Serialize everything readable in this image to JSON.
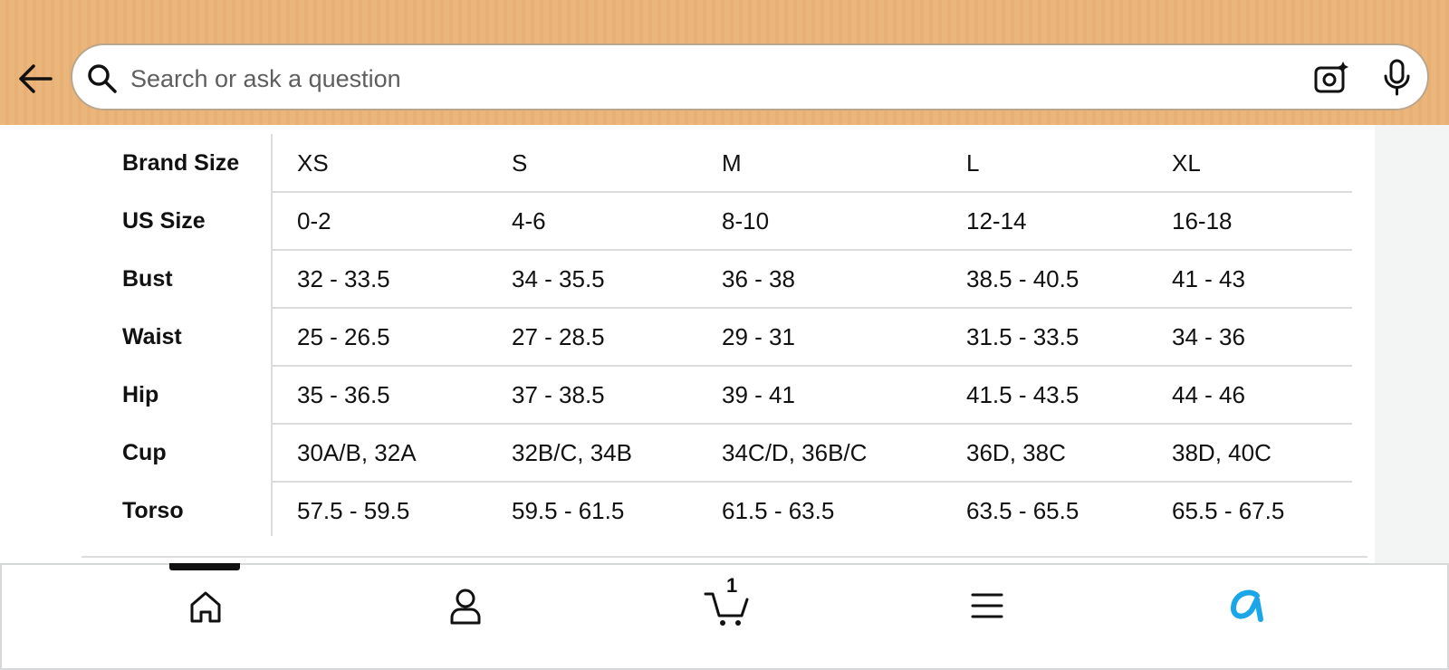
{
  "search": {
    "placeholder": "Search or ask a question"
  },
  "table": {
    "header": [
      "Brand Size",
      "XS",
      "S",
      "M",
      "L",
      "XL"
    ],
    "rows": [
      [
        "US Size",
        "0-2",
        "4-6",
        "8-10",
        "12-14",
        "16-18"
      ],
      [
        "Bust",
        "32 - 33.5",
        "34 - 35.5",
        "36 - 38",
        "38.5 - 40.5",
        "41 - 43"
      ],
      [
        "Waist",
        "25 - 26.5",
        "27 - 28.5",
        "29 - 31",
        "31.5 - 33.5",
        "34 - 36"
      ],
      [
        "Hip",
        "35 - 36.5",
        "37 - 38.5",
        "39 - 41",
        "41.5 - 43.5",
        "44 - 46"
      ],
      [
        "Cup",
        "30A/B, 32A",
        "32B/C, 34B",
        "34C/D, 36B/C",
        "36D, 38C",
        "38D, 40C"
      ],
      [
        "Torso",
        "57.5 - 59.5",
        "59.5 - 61.5",
        "61.5 - 63.5",
        "63.5 - 65.5",
        "65.5 - 67.5"
      ]
    ]
  },
  "nav": {
    "cart_count": 1
  }
}
